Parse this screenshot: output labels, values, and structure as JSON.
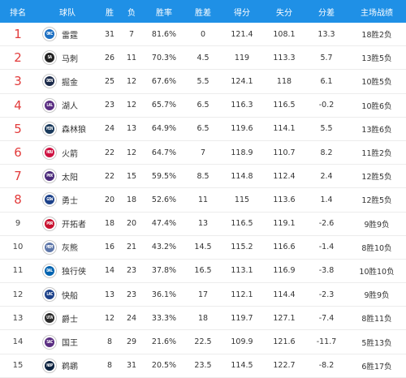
{
  "headers": {
    "rank": "排名",
    "team": "球队",
    "wins": "胜",
    "losses": "负",
    "pct": "胜率",
    "gb": "胜差",
    "pf": "得分",
    "pa": "失分",
    "diff": "分差",
    "record": "主场战绩"
  },
  "colors": {
    "header_bg": "#1f90e6",
    "top_rank": "#e23b3b"
  },
  "teams": [
    {
      "rank": "1",
      "name": "雷霆",
      "w": "31",
      "l": "7",
      "pct": "81.6%",
      "gb": "0",
      "pf": "121.4",
      "pa": "108.1",
      "diff": "13.3",
      "rec": "18胜2负",
      "logo": "OKC",
      "logo_color": "#1d6fc2"
    },
    {
      "rank": "2",
      "name": "马刺",
      "w": "26",
      "l": "11",
      "pct": "70.3%",
      "gb": "4.5",
      "pf": "119",
      "pa": "113.3",
      "diff": "5.7",
      "rec": "13胜5负",
      "logo": "SA",
      "logo_color": "#222222"
    },
    {
      "rank": "3",
      "name": "掘金",
      "w": "25",
      "l": "12",
      "pct": "67.6%",
      "gb": "5.5",
      "pf": "124.1",
      "pa": "118",
      "diff": "6.1",
      "rec": "10胜5负",
      "logo": "DEN",
      "logo_color": "#1b2a4a"
    },
    {
      "rank": "4",
      "name": "湖人",
      "w": "23",
      "l": "12",
      "pct": "65.7%",
      "gb": "6.5",
      "pf": "116.3",
      "pa": "116.5",
      "diff": "-0.2",
      "rec": "10胜6负",
      "logo": "LAL",
      "logo_color": "#5a2d82"
    },
    {
      "rank": "5",
      "name": "森林狼",
      "w": "24",
      "l": "13",
      "pct": "64.9%",
      "gb": "6.5",
      "pf": "119.6",
      "pa": "114.1",
      "diff": "5.5",
      "rec": "13胜6负",
      "logo": "MIN",
      "logo_color": "#1a3a5c"
    },
    {
      "rank": "6",
      "name": "火箭",
      "w": "22",
      "l": "12",
      "pct": "64.7%",
      "gb": "7",
      "pf": "118.9",
      "pa": "110.7",
      "diff": "8.2",
      "rec": "11胜2负",
      "logo": "HOU",
      "logo_color": "#ce1141"
    },
    {
      "rank": "7",
      "name": "太阳",
      "w": "22",
      "l": "15",
      "pct": "59.5%",
      "gb": "8.5",
      "pf": "114.8",
      "pa": "112.4",
      "diff": "2.4",
      "rec": "12胜5负",
      "logo": "PHX",
      "logo_color": "#4a2a7a"
    },
    {
      "rank": "8",
      "name": "勇士",
      "w": "20",
      "l": "18",
      "pct": "52.6%",
      "gb": "11",
      "pf": "115",
      "pa": "113.6",
      "diff": "1.4",
      "rec": "12胜5负",
      "logo": "GSW",
      "logo_color": "#1d428a"
    },
    {
      "rank": "9",
      "name": "开拓者",
      "w": "18",
      "l": "20",
      "pct": "47.4%",
      "gb": "13",
      "pf": "116.5",
      "pa": "119.1",
      "diff": "-2.6",
      "rec": "9胜9负",
      "logo": "POR",
      "logo_color": "#c8102e"
    },
    {
      "rank": "10",
      "name": "灰熊",
      "w": "16",
      "l": "21",
      "pct": "43.2%",
      "gb": "14.5",
      "pf": "115.2",
      "pa": "116.6",
      "diff": "-1.4",
      "rec": "8胜10负",
      "logo": "MEM",
      "logo_color": "#5d76a9"
    },
    {
      "rank": "11",
      "name": "独行侠",
      "w": "14",
      "l": "23",
      "pct": "37.8%",
      "gb": "16.5",
      "pf": "113.1",
      "pa": "116.9",
      "diff": "-3.8",
      "rec": "10胜10负",
      "logo": "DAL",
      "logo_color": "#0064b1"
    },
    {
      "rank": "12",
      "name": "快船",
      "w": "13",
      "l": "23",
      "pct": "36.1%",
      "gb": "17",
      "pf": "112.1",
      "pa": "114.4",
      "diff": "-2.3",
      "rec": "9胜9负",
      "logo": "LAC",
      "logo_color": "#1d428a"
    },
    {
      "rank": "13",
      "name": "爵士",
      "w": "12",
      "l": "24",
      "pct": "33.3%",
      "gb": "18",
      "pf": "119.7",
      "pa": "127.1",
      "diff": "-7.4",
      "rec": "8胜11负",
      "logo": "UTA",
      "logo_color": "#2b2b2b"
    },
    {
      "rank": "14",
      "name": "国王",
      "w": "8",
      "l": "29",
      "pct": "21.6%",
      "gb": "22.5",
      "pf": "109.9",
      "pa": "121.6",
      "diff": "-11.7",
      "rec": "5胜13负",
      "logo": "SAC",
      "logo_color": "#5a2d81"
    },
    {
      "rank": "15",
      "name": "鹈鹕",
      "w": "8",
      "l": "31",
      "pct": "20.5%",
      "gb": "23.5",
      "pf": "114.5",
      "pa": "122.7",
      "diff": "-8.2",
      "rec": "6胜17负",
      "logo": "NOP",
      "logo_color": "#0c2340"
    }
  ]
}
